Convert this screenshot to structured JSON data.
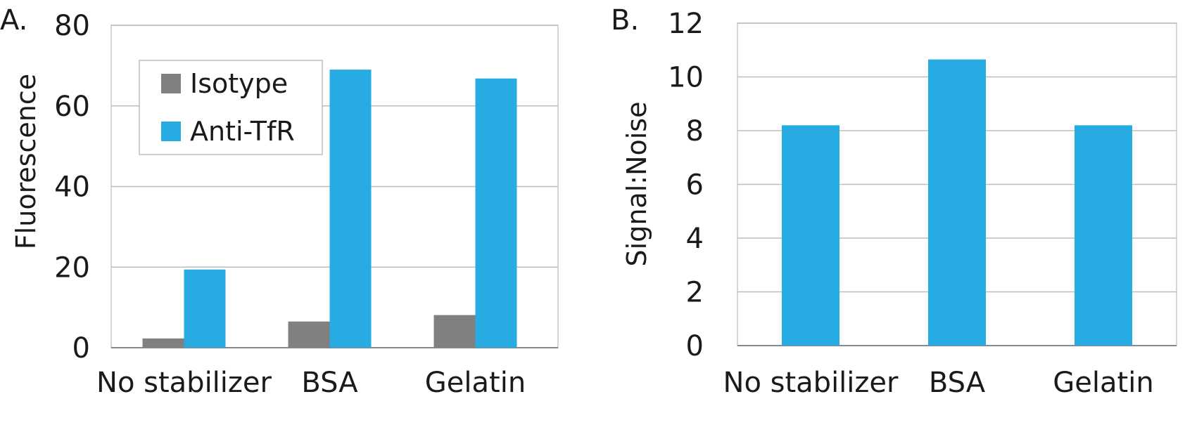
{
  "chart_data": [
    {
      "type": "bar",
      "panel_label": "A.",
      "categories": [
        "No stabilizer",
        "BSA",
        "Gelatin"
      ],
      "series": [
        {
          "name": "Isotype",
          "values": [
            2.3,
            6.5,
            8.1
          ],
          "color": "#808080"
        },
        {
          "name": "Anti-TfR",
          "values": [
            19.4,
            69.0,
            66.8
          ],
          "color": "#27ABE2"
        }
      ],
      "ylabel": "Fluorescence",
      "ylim": [
        0,
        80
      ],
      "yticks": [
        "0",
        "20",
        "40",
        "60",
        "80"
      ],
      "grid": true,
      "legend": "top-left"
    },
    {
      "type": "bar",
      "panel_label": "B.",
      "categories": [
        "No stabilizer",
        "BSA",
        "Gelatin"
      ],
      "series": [
        {
          "values": [
            8.2,
            10.65,
            8.2
          ],
          "color": "#27ABE2"
        }
      ],
      "ylabel": "Signal:Noise",
      "ylim": [
        0,
        12
      ],
      "yticks": [
        "0",
        "2",
        "4",
        "6",
        "8",
        "10",
        "12"
      ],
      "grid": true
    }
  ]
}
